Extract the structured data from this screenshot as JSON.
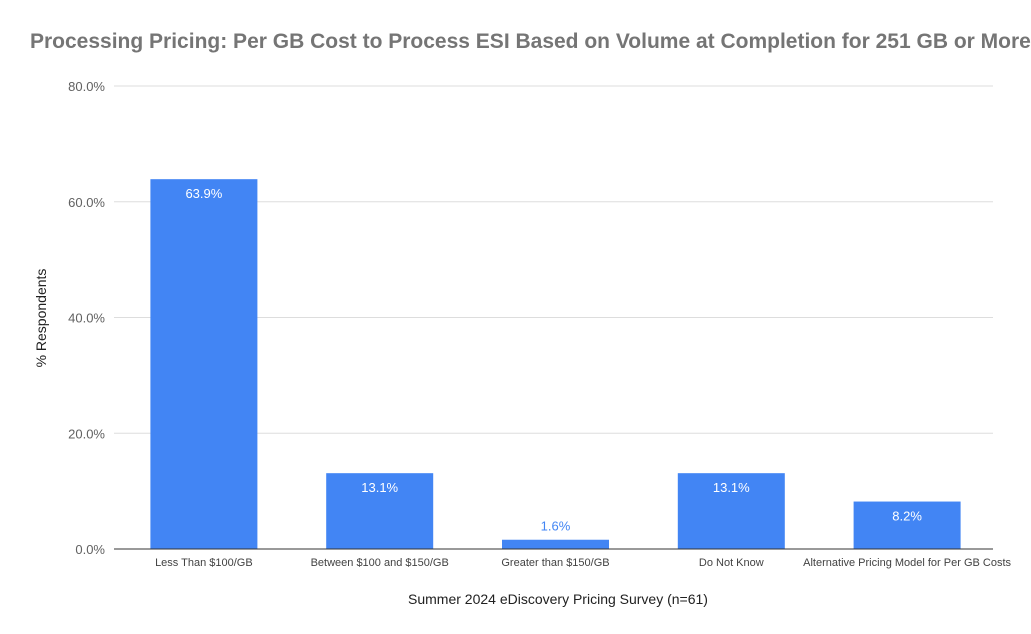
{
  "chart_data": {
    "type": "bar",
    "title": "Processing Pricing: Per GB Cost to Process ESI Based on Volume at Completion for 251 GB or More",
    "xlabel": "Summer 2024 eDiscovery Pricing Survey (n=61)",
    "ylabel": "% Respondents",
    "ylim": [
      0,
      80
    ],
    "yticks": [
      {
        "value": 0,
        "label": "0.0%"
      },
      {
        "value": 20,
        "label": "20.0%"
      },
      {
        "value": 40,
        "label": "40.0%"
      },
      {
        "value": 60,
        "label": "60.0%"
      },
      {
        "value": 80,
        "label": "80.0%"
      }
    ],
    "grid": true,
    "bar_color": "#4285f4",
    "categories": [
      "Less Than $100/GB",
      "Between $100 and $150/GB",
      "Greater than $150/GB",
      "Do Not Know",
      "Alternative Pricing Model for Per GB Costs"
    ],
    "values": [
      63.9,
      13.1,
      1.6,
      13.1,
      8.2
    ],
    "data_labels": [
      "63.9%",
      "13.1%",
      "1.6%",
      "13.1%",
      "8.2%"
    ]
  }
}
